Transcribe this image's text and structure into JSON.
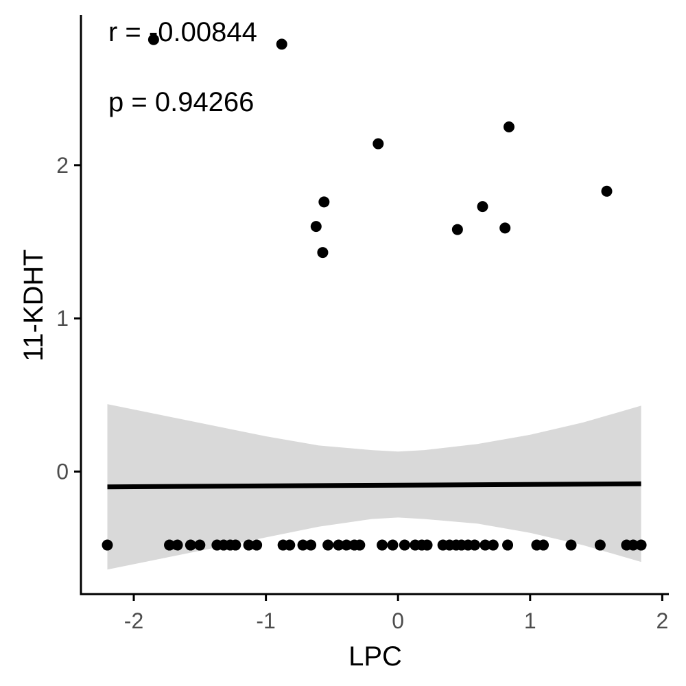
{
  "chart_data": {
    "type": "scatter",
    "xlabel": "LPC",
    "ylabel": "11-KDHT",
    "xlim": [
      -2.4,
      2.05
    ],
    "ylim": [
      -0.8,
      2.98
    ],
    "xticks": [
      -2,
      -1,
      0,
      1,
      2
    ],
    "xtick_labels": [
      "-2",
      "-1",
      "0",
      "1",
      "2"
    ],
    "yticks": [
      0,
      1,
      2
    ],
    "ytick_labels": [
      "0",
      "1",
      "2"
    ],
    "grid": false,
    "legend": "none",
    "annotations": {
      "r_text": "r = -0.00844",
      "p_text": "p = 0.94266"
    },
    "points": [
      {
        "x": -1.85,
        "y": 2.82
      },
      {
        "x": -0.88,
        "y": 2.79
      },
      {
        "x": -0.15,
        "y": 2.14
      },
      {
        "x": 0.84,
        "y": 2.25
      },
      {
        "x": 1.58,
        "y": 1.83
      },
      {
        "x": -0.56,
        "y": 1.76
      },
      {
        "x": -0.62,
        "y": 1.6
      },
      {
        "x": -0.57,
        "y": 1.43
      },
      {
        "x": 0.45,
        "y": 1.58
      },
      {
        "x": 0.64,
        "y": 1.73
      },
      {
        "x": 0.81,
        "y": 1.59
      },
      {
        "x": -2.2,
        "y": -0.48
      },
      {
        "x": -1.73,
        "y": -0.48
      },
      {
        "x": -1.67,
        "y": -0.48
      },
      {
        "x": -1.57,
        "y": -0.48
      },
      {
        "x": -1.5,
        "y": -0.48
      },
      {
        "x": -1.37,
        "y": -0.48
      },
      {
        "x": -1.32,
        "y": -0.48
      },
      {
        "x": -1.27,
        "y": -0.48
      },
      {
        "x": -1.23,
        "y": -0.48
      },
      {
        "x": -1.13,
        "y": -0.48
      },
      {
        "x": -1.07,
        "y": -0.48
      },
      {
        "x": -0.87,
        "y": -0.48
      },
      {
        "x": -0.82,
        "y": -0.48
      },
      {
        "x": -0.72,
        "y": -0.48
      },
      {
        "x": -0.66,
        "y": -0.48
      },
      {
        "x": -0.53,
        "y": -0.48
      },
      {
        "x": -0.45,
        "y": -0.48
      },
      {
        "x": -0.39,
        "y": -0.48
      },
      {
        "x": -0.33,
        "y": -0.48
      },
      {
        "x": -0.29,
        "y": -0.48
      },
      {
        "x": -0.12,
        "y": -0.48
      },
      {
        "x": -0.04,
        "y": -0.48
      },
      {
        "x": 0.05,
        "y": -0.48
      },
      {
        "x": 0.13,
        "y": -0.48
      },
      {
        "x": 0.18,
        "y": -0.48
      },
      {
        "x": 0.22,
        "y": -0.48
      },
      {
        "x": 0.34,
        "y": -0.48
      },
      {
        "x": 0.39,
        "y": -0.48
      },
      {
        "x": 0.44,
        "y": -0.48
      },
      {
        "x": 0.48,
        "y": -0.48
      },
      {
        "x": 0.53,
        "y": -0.48
      },
      {
        "x": 0.58,
        "y": -0.48
      },
      {
        "x": 0.66,
        "y": -0.48
      },
      {
        "x": 0.72,
        "y": -0.48
      },
      {
        "x": 0.83,
        "y": -0.48
      },
      {
        "x": 1.05,
        "y": -0.48
      },
      {
        "x": 1.1,
        "y": -0.48
      },
      {
        "x": 1.31,
        "y": -0.48
      },
      {
        "x": 1.53,
        "y": -0.48
      },
      {
        "x": 1.73,
        "y": -0.48
      },
      {
        "x": 1.78,
        "y": -0.48
      },
      {
        "x": 1.84,
        "y": -0.48
      }
    ],
    "fit_line": {
      "x": [
        -2.2,
        1.84
      ],
      "y": [
        -0.1,
        -0.08
      ]
    },
    "confidence_band": {
      "x": [
        -2.2,
        -1.8,
        -1.4,
        -1.0,
        -0.6,
        -0.2,
        0.0,
        0.2,
        0.6,
        1.0,
        1.4,
        1.84
      ],
      "upper": [
        0.44,
        0.37,
        0.3,
        0.23,
        0.17,
        0.14,
        0.13,
        0.14,
        0.18,
        0.24,
        0.32,
        0.43
      ],
      "lower": [
        -0.64,
        -0.57,
        -0.5,
        -0.43,
        -0.36,
        -0.31,
        -0.3,
        -0.31,
        -0.34,
        -0.4,
        -0.48,
        -0.59
      ]
    },
    "colors": {
      "points": "#000000",
      "line": "#000000",
      "band": "#d9d9d9",
      "axis": "#000000",
      "tick_text": "#4d4d4d"
    }
  }
}
